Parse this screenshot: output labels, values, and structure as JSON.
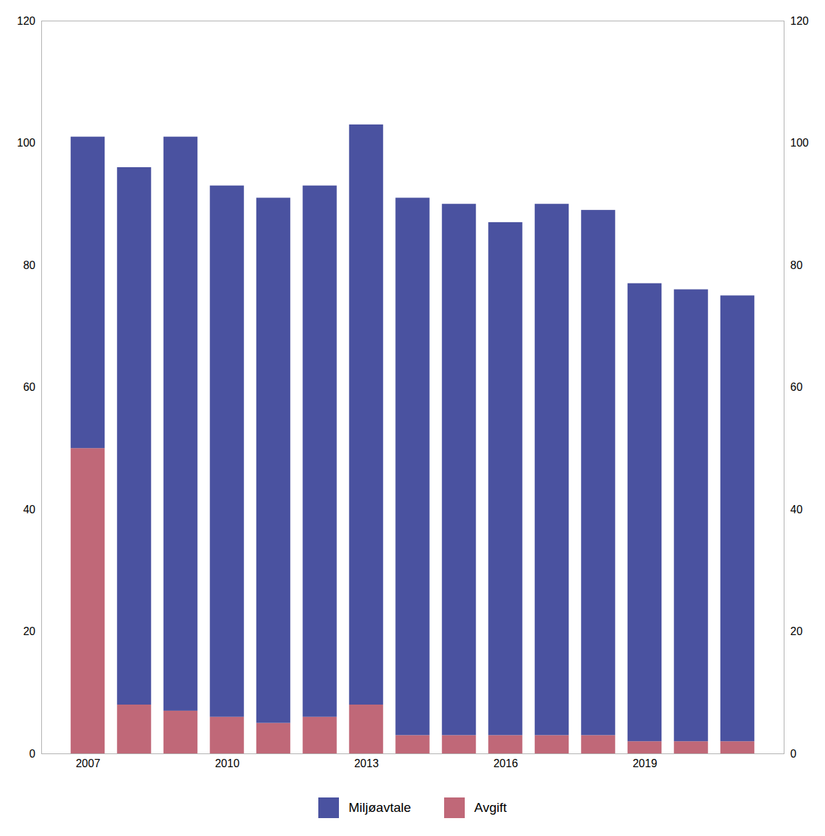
{
  "chart_data": {
    "type": "bar",
    "stacked": true,
    "x": [
      2007,
      2008,
      2009,
      2010,
      2011,
      2012,
      2013,
      2014,
      2015,
      2016,
      2017,
      2018,
      2019,
      2020,
      2021
    ],
    "series": [
      {
        "name": "Avgift",
        "color": "#c06878",
        "values": [
          50,
          8,
          7,
          6,
          5,
          6,
          8,
          3,
          3,
          3,
          3,
          3,
          2,
          2,
          2
        ]
      },
      {
        "name": "Miljøavtale",
        "color": "#4a52a0",
        "values": [
          51,
          88,
          94,
          87,
          86,
          87,
          95,
          88,
          87,
          84,
          87,
          86,
          75,
          74,
          73
        ]
      }
    ],
    "xlim": [
      2006,
      2022
    ],
    "xticks": [
      2007,
      2010,
      2013,
      2016,
      2019
    ],
    "ylim": [
      0,
      120
    ],
    "yticks": [
      0,
      20,
      40,
      60,
      80,
      100,
      120
    ],
    "y2lim": [
      0,
      120
    ],
    "y2ticks": [
      0,
      20,
      40,
      60,
      80,
      100,
      120
    ],
    "grid": false,
    "legend": "bottom"
  }
}
